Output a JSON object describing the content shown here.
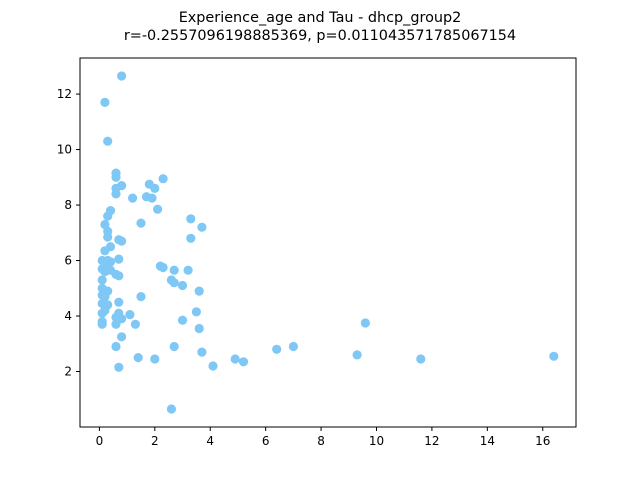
{
  "chart_data": {
    "type": "scatter",
    "title_line1": "Experience_age and Tau - dhcp_group2",
    "title_line2": "r=-0.2557096198885369, p=0.011043571785067154",
    "xlabel": "",
    "ylabel": "",
    "xlim": [
      -0.7,
      17.2
    ],
    "ylim": [
      0.0,
      13.3
    ],
    "xticks": [
      0,
      2,
      4,
      6,
      8,
      10,
      12,
      14,
      16
    ],
    "yticks": [
      2,
      4,
      6,
      8,
      10,
      12
    ],
    "grid": false,
    "marker_color": "#7fc8f5",
    "points": [
      [
        0.2,
        11.7
      ],
      [
        0.8,
        12.65
      ],
      [
        0.3,
        10.3
      ],
      [
        0.6,
        9.15
      ],
      [
        0.6,
        9.0
      ],
      [
        0.6,
        8.6
      ],
      [
        0.8,
        8.7
      ],
      [
        0.6,
        8.4
      ],
      [
        1.8,
        8.75
      ],
      [
        2.0,
        8.6
      ],
      [
        2.3,
        8.95
      ],
      [
        1.7,
        8.3
      ],
      [
        1.9,
        8.25
      ],
      [
        1.2,
        8.25
      ],
      [
        0.4,
        7.8
      ],
      [
        0.3,
        7.6
      ],
      [
        0.2,
        7.3
      ],
      [
        0.3,
        7.05
      ],
      [
        1.5,
        7.35
      ],
      [
        2.1,
        7.85
      ],
      [
        3.3,
        7.5
      ],
      [
        3.7,
        7.2
      ],
      [
        3.3,
        6.8
      ],
      [
        0.3,
        6.85
      ],
      [
        0.7,
        6.75
      ],
      [
        0.8,
        6.7
      ],
      [
        0.2,
        6.35
      ],
      [
        0.4,
        6.5
      ],
      [
        0.1,
        6.0
      ],
      [
        0.2,
        5.9
      ],
      [
        0.3,
        6.0
      ],
      [
        0.4,
        5.95
      ],
      [
        0.7,
        6.05
      ],
      [
        0.1,
        5.7
      ],
      [
        0.2,
        5.6
      ],
      [
        0.4,
        5.65
      ],
      [
        0.6,
        5.5
      ],
      [
        0.7,
        5.45
      ],
      [
        2.2,
        5.8
      ],
      [
        2.3,
        5.75
      ],
      [
        2.7,
        5.65
      ],
      [
        3.2,
        5.65
      ],
      [
        0.1,
        5.3
      ],
      [
        0.1,
        5.0
      ],
      [
        0.2,
        4.9
      ],
      [
        0.3,
        4.9
      ],
      [
        0.1,
        4.75
      ],
      [
        0.2,
        4.7
      ],
      [
        2.6,
        5.3
      ],
      [
        2.7,
        5.2
      ],
      [
        3.0,
        5.1
      ],
      [
        3.6,
        4.9
      ],
      [
        0.1,
        4.45
      ],
      [
        0.2,
        4.4
      ],
      [
        0.3,
        4.4
      ],
      [
        0.7,
        4.5
      ],
      [
        1.5,
        4.7
      ],
      [
        0.1,
        4.1
      ],
      [
        0.2,
        4.2
      ],
      [
        0.7,
        4.1
      ],
      [
        0.6,
        3.95
      ],
      [
        0.8,
        3.9
      ],
      [
        0.1,
        3.8
      ],
      [
        0.1,
        3.7
      ],
      [
        0.6,
        3.7
      ],
      [
        1.1,
        4.05
      ],
      [
        1.3,
        3.7
      ],
      [
        3.5,
        4.15
      ],
      [
        3.0,
        3.85
      ],
      [
        3.6,
        3.55
      ],
      [
        0.8,
        3.25
      ],
      [
        0.6,
        2.9
      ],
      [
        2.7,
        2.9
      ],
      [
        1.4,
        2.5
      ],
      [
        2.0,
        2.45
      ],
      [
        3.7,
        2.7
      ],
      [
        4.9,
        2.45
      ],
      [
        5.2,
        2.35
      ],
      [
        4.1,
        2.2
      ],
      [
        0.7,
        2.15
      ],
      [
        6.4,
        2.8
      ],
      [
        7.0,
        2.9
      ],
      [
        9.6,
        3.75
      ],
      [
        9.3,
        2.6
      ],
      [
        11.6,
        2.45
      ],
      [
        16.4,
        2.55
      ],
      [
        2.6,
        0.65
      ]
    ]
  }
}
